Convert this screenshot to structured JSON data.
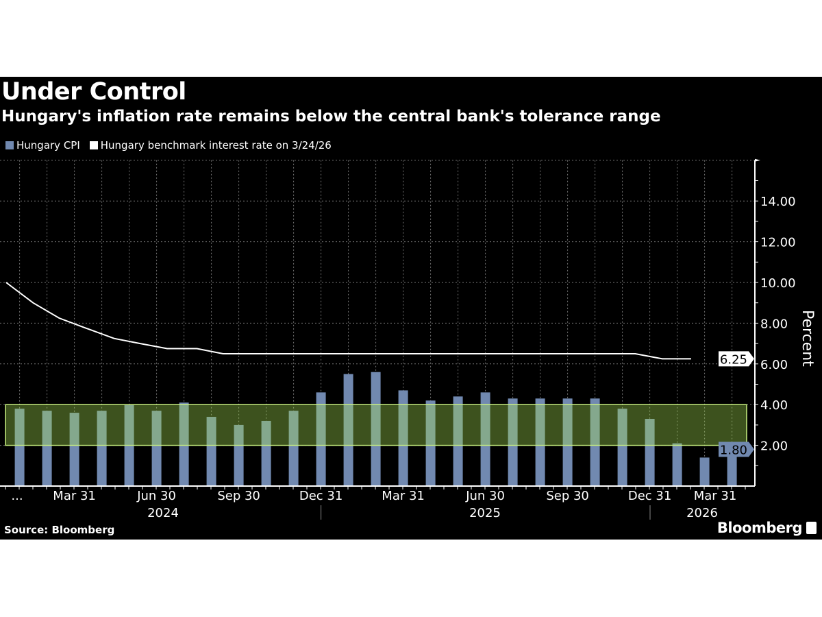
{
  "title": "Under Control",
  "subtitle": "Hungary's inflation rate remains below the central bank's tolerance range",
  "source": "Source: Bloomberg",
  "logo": "Bloomberg",
  "colors": {
    "background": "#000000",
    "cpi_bar": "#7189b0",
    "rate_line": "#ffffff",
    "tolerance_band": "#a5de51",
    "tolerance_border": "#c8f080"
  },
  "chart_data": {
    "type": "bar",
    "ylabel": "Percent",
    "ylim": [
      0,
      16
    ],
    "y_ticks": [
      "14.00",
      "12.00",
      "10.00",
      "8.00",
      "6.00",
      "4.00",
      "2.00"
    ],
    "y_tick_values": [
      14,
      12,
      10,
      8,
      6,
      4,
      2
    ],
    "grid": true,
    "legend_position": "top-left",
    "x_tick_labels": [
      "...",
      "Mar 31",
      "Jun 30",
      "Sep 30",
      "Dec 31",
      "Mar 31",
      "Jun 30",
      "Sep 30",
      "Dec 31",
      "Mar 31"
    ],
    "x_tick_months": [
      "2024-01",
      "2024-03",
      "2024-06",
      "2024-09",
      "2024-12",
      "2025-03",
      "2025-06",
      "2025-09",
      "2025-12",
      "2026-03"
    ],
    "year_labels": [
      "2024",
      "2025",
      "2026"
    ],
    "tolerance_band": [
      2,
      4
    ],
    "categories": [
      "2024-01",
      "2024-02",
      "2024-03",
      "2024-04",
      "2024-05",
      "2024-06",
      "2024-07",
      "2024-08",
      "2024-09",
      "2024-10",
      "2024-11",
      "2024-12",
      "2025-01",
      "2025-02",
      "2025-03",
      "2025-04",
      "2025-05",
      "2025-06",
      "2025-07",
      "2025-08",
      "2025-09",
      "2025-10",
      "2025-11",
      "2025-12",
      "2026-01",
      "2026-02",
      "2026-03"
    ],
    "series": [
      {
        "name": "Hungary CPI",
        "type": "bar",
        "values": [
          3.8,
          3.7,
          3.6,
          3.7,
          4.0,
          3.7,
          4.1,
          3.4,
          3.0,
          3.2,
          3.7,
          4.6,
          5.5,
          5.6,
          4.7,
          4.2,
          4.4,
          4.6,
          4.3,
          4.3,
          4.3,
          4.3,
          3.8,
          3.3,
          2.1,
          1.4,
          1.8
        ],
        "last_value_label": "1.80"
      },
      {
        "name": "Hungary benchmark interest rate on 3/24/26",
        "type": "line",
        "points": [
          [
            "2024-01-16",
            10.0
          ],
          [
            "2024-02-15",
            9.0
          ],
          [
            "2024-03-15",
            8.25
          ],
          [
            "2024-04-14",
            7.75
          ],
          [
            "2024-05-15",
            7.25
          ],
          [
            "2024-06-13",
            7.0
          ],
          [
            "2024-07-13",
            6.75
          ],
          [
            "2024-08-15",
            6.75
          ],
          [
            "2024-09-13",
            6.5
          ],
          [
            "2025-12-15",
            6.5
          ],
          [
            "2026-01-14",
            6.25
          ],
          [
            "2026-02-15",
            6.25
          ]
        ],
        "last_value_label": "6.25"
      }
    ]
  }
}
